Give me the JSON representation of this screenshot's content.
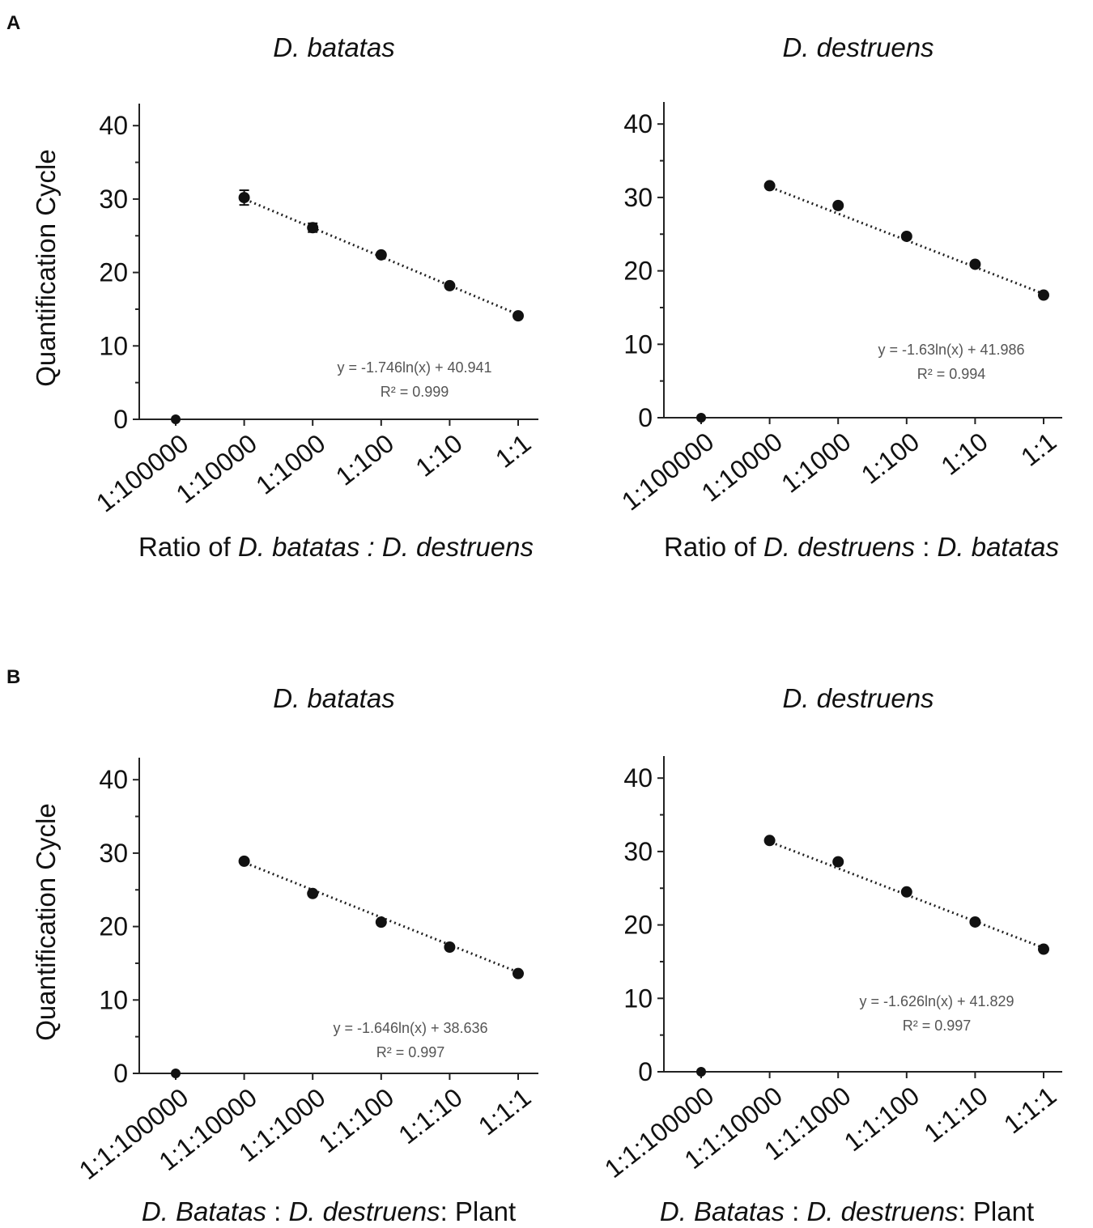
{
  "panels": {
    "A": "A",
    "B": "B"
  },
  "chart_data": [
    {
      "type": "scatter",
      "panel": "A",
      "title": "D. batatas",
      "ylabel": "Quantification Cycle",
      "xlabel_parts": [
        {
          "text": "Ratio of ",
          "italic": false
        },
        {
          "text": "D. batatas",
          "italic": true
        },
        {
          "text": " : ",
          "italic": true
        },
        {
          "text": "D. destruens",
          "italic": true
        }
      ],
      "categories": [
        "1:100000",
        "1:10000",
        "1:1000",
        "1:100",
        "1:10",
        "1:1"
      ],
      "values": [
        0,
        30.2,
        26.1,
        22.4,
        18.2,
        14.1
      ],
      "errors": [
        0,
        1.0,
        0.6,
        0.3,
        0.3,
        0.3
      ],
      "ylim": [
        0,
        43
      ],
      "yticks": [
        0,
        10,
        20,
        30,
        40
      ],
      "trendline": {
        "from_index": 1,
        "to_index": 5,
        "style": "dotted"
      },
      "equation": "y = -1.746ln(x) + 40.941",
      "r2": "R² = 0.999"
    },
    {
      "type": "scatter",
      "panel": "A",
      "title": "D. destruens",
      "ylabel": "",
      "xlabel_parts": [
        {
          "text": "Ratio of ",
          "italic": false
        },
        {
          "text": "D. destruens",
          "italic": true
        },
        {
          "text": " : ",
          "italic": false
        },
        {
          "text": "D. batatas",
          "italic": true
        }
      ],
      "categories": [
        "1:100000",
        "1:10000",
        "1:1000",
        "1:100",
        "1:10",
        "1:1"
      ],
      "values": [
        0,
        31.6,
        28.9,
        24.7,
        20.9,
        16.7
      ],
      "errors": [
        0,
        0.3,
        0.3,
        0.3,
        0.3,
        0.3
      ],
      "ylim": [
        0,
        43
      ],
      "yticks": [
        0,
        10,
        20,
        30,
        40
      ],
      "trendline": {
        "from_index": 1,
        "to_index": 5,
        "style": "dotted"
      },
      "equation": "y = -1.63ln(x) + 41.986",
      "r2": "R² = 0.994"
    },
    {
      "type": "scatter",
      "panel": "B",
      "title": "D. batatas",
      "ylabel": "Quantification Cycle",
      "xlabel_parts": [
        {
          "text": "D. Batatas",
          "italic": true
        },
        {
          "text": " : ",
          "italic": false
        },
        {
          "text": "D. destruens",
          "italic": true
        },
        {
          "text": ": Plant",
          "italic": false
        }
      ],
      "categories": [
        "1:1:100000",
        "1:1:10000",
        "1:1:1000",
        "1:1:100",
        "1:1:10",
        "1:1:1"
      ],
      "values": [
        0,
        28.9,
        24.5,
        20.6,
        17.2,
        13.6
      ],
      "errors": [
        0,
        0.3,
        0.3,
        0.3,
        0.3,
        0.3
      ],
      "ylim": [
        0,
        43
      ],
      "yticks": [
        0,
        10,
        20,
        30,
        40
      ],
      "trendline": {
        "from_index": 1,
        "to_index": 5,
        "style": "dotted"
      },
      "equation": "y = -1.646ln(x) + 38.636",
      "r2": "R² = 0.997"
    },
    {
      "type": "scatter",
      "panel": "B",
      "title": "D. destruens",
      "ylabel": "",
      "xlabel_parts": [
        {
          "text": "D. Batatas",
          "italic": true
        },
        {
          "text": " : ",
          "italic": false
        },
        {
          "text": "D. destruens",
          "italic": true
        },
        {
          "text": ": Plant",
          "italic": false
        }
      ],
      "categories": [
        "1:1:100000",
        "1:1:10000",
        "1:1:1000",
        "1:1:100",
        "1:1:10",
        "1:1:1"
      ],
      "values": [
        0,
        31.5,
        28.6,
        24.5,
        20.4,
        16.7
      ],
      "errors": [
        0,
        0.3,
        0.3,
        0.3,
        0.3,
        0.3
      ],
      "ylim": [
        0,
        43
      ],
      "yticks": [
        0,
        10,
        20,
        30,
        40
      ],
      "trendline": {
        "from_index": 1,
        "to_index": 5,
        "style": "dotted"
      },
      "equation": "y = -1.626ln(x) + 41.829",
      "r2": "R² = 0.997"
    }
  ]
}
